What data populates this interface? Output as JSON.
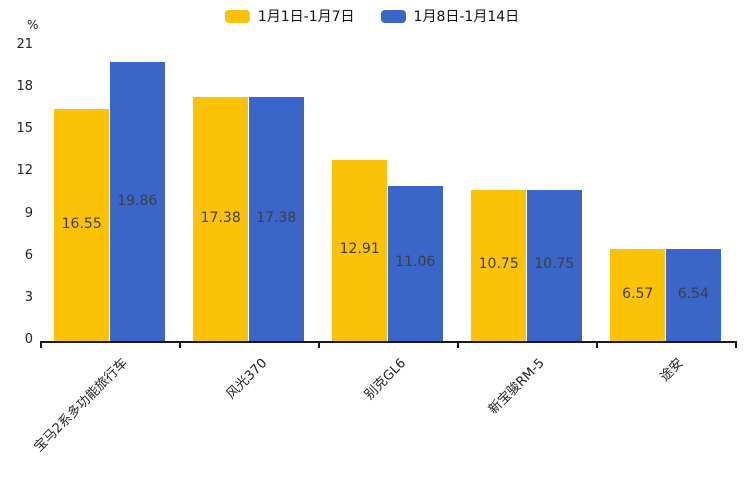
{
  "chart_data": {
    "type": "bar",
    "title": "",
    "unit": "%",
    "categories": [
      "宝马2系多功能旅行车",
      "风光370",
      "别克GL6",
      "新宝骏RM-5",
      "途安"
    ],
    "series": [
      {
        "name": "1月1日-1月7日",
        "color": "#FCC306",
        "values": [
          16.55,
          17.38,
          12.91,
          10.75,
          6.57
        ]
      },
      {
        "name": "1月8日-1月14日",
        "color": "#3A66C9",
        "values": [
          19.86,
          17.38,
          11.06,
          10.75,
          6.54
        ]
      }
    ],
    "value_labels": [
      "16.55",
      "19.86",
      "17.38",
      "17.38",
      "12.91",
      "11.06",
      "10.75",
      "10.75",
      "6.57",
      "6.54"
    ],
    "ylim": [
      0,
      21
    ],
    "yticks": [
      0,
      3,
      6,
      9,
      12,
      15,
      18,
      21
    ],
    "grid": false,
    "legend_position": "top-center",
    "axis_color": "#1a1a1a",
    "label_color": "#3d3d3d",
    "tick_label_color": "#222222",
    "background": "#ffffff"
  }
}
